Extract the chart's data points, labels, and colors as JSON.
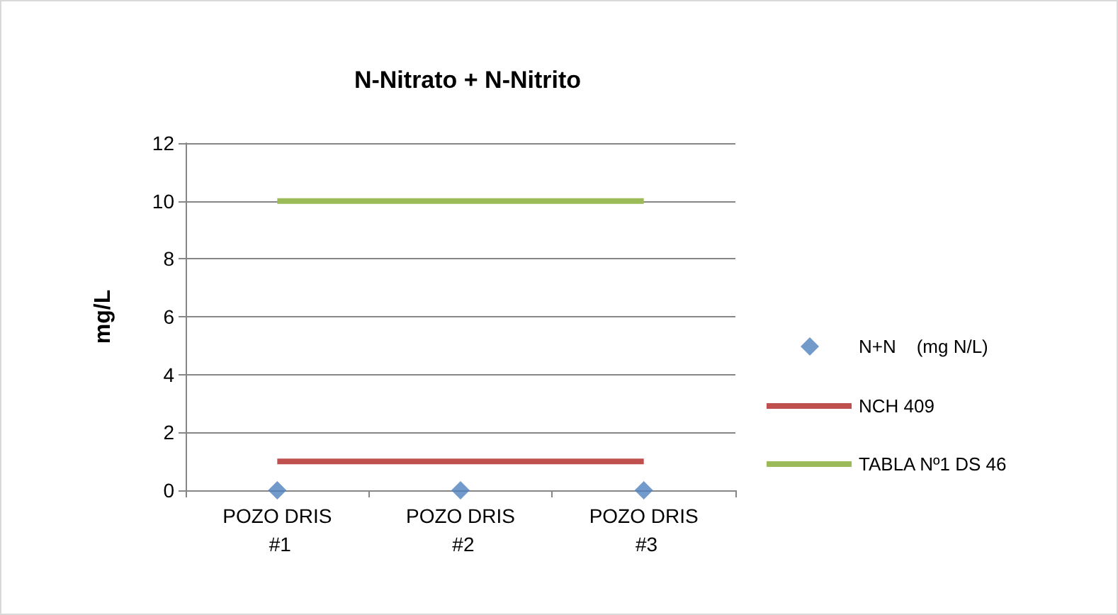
{
  "chart_data": {
    "type": "line",
    "title": "N-Nitrato + N-Nitrito",
    "ylabel": "mg/L",
    "categories": [
      "POZO DRIS #1",
      "POZO DRIS #2",
      "POZO DRIS #3"
    ],
    "series": [
      {
        "name": "N+N    (mg N/L)",
        "type": "scatter",
        "color": "#4f81bd",
        "marker": "diamond",
        "values": [
          0,
          0,
          0
        ]
      },
      {
        "name": "NCH 409",
        "color": "#c0504d",
        "marker": "none",
        "values": [
          1,
          1,
          1
        ]
      },
      {
        "name": "TABLA Nº1 DS 46",
        "color": "#9bbb59",
        "marker": "none",
        "values": [
          10,
          10,
          10
        ]
      }
    ],
    "ylim": [
      0,
      12
    ],
    "yticks": [
      0,
      2,
      4,
      6,
      8,
      10,
      12
    ],
    "grid": "y",
    "legend": "right"
  }
}
